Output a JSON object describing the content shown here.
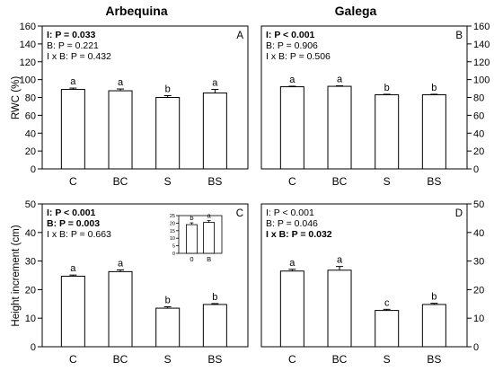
{
  "figure": {
    "column_titles": [
      "Arbequina",
      "Galega"
    ],
    "row_ylabels": [
      "RWC (%)",
      "Height increment (cm)"
    ]
  },
  "chart_data": [
    {
      "type": "bar",
      "panel_letter": "A",
      "column_title": "Arbequina",
      "ylabel": "RWC (%)",
      "ylim": [
        0,
        160
      ],
      "yticks": [
        0,
        20,
        40,
        60,
        80,
        100,
        120,
        140,
        160
      ],
      "categories": [
        "C",
        "BC",
        "S",
        "BS"
      ],
      "values": [
        89,
        87.5,
        80,
        85
      ],
      "errors": [
        1.5,
        2,
        2,
        4
      ],
      "letters": [
        "a",
        "a",
        "b",
        "a"
      ],
      "stats": [
        {
          "text": "I: P = 0.033",
          "bold": true
        },
        {
          "text": "B: P = 0.221",
          "bold": false
        },
        {
          "text": "I x B: P = 0.432",
          "bold": false
        }
      ]
    },
    {
      "type": "bar",
      "panel_letter": "B",
      "column_title": "Galega",
      "ylabel": "",
      "ylim": [
        0,
        160
      ],
      "yticks": [
        0,
        20,
        40,
        60,
        80,
        100,
        120,
        140,
        160
      ],
      "categories": [
        "C",
        "BC",
        "S",
        "BS"
      ],
      "values": [
        92,
        92.5,
        83,
        83
      ],
      "errors": [
        0.6,
        0.6,
        0.6,
        0.6
      ],
      "letters": [
        "a",
        "a",
        "b",
        "b"
      ],
      "stats": [
        {
          "text": "I: P < 0.001",
          "bold": true
        },
        {
          "text": "B: P = 0.906",
          "bold": false
        },
        {
          "text": "I x B: P = 0.506",
          "bold": false
        }
      ]
    },
    {
      "type": "bar",
      "panel_letter": "C",
      "column_title": "",
      "ylabel": "Height increment (cm)",
      "ylim": [
        0,
        50
      ],
      "yticks": [
        0,
        10,
        20,
        30,
        40,
        50
      ],
      "categories": [
        "C",
        "BC",
        "S",
        "BS"
      ],
      "values": [
        24.7,
        26.3,
        13.5,
        14.8
      ],
      "errors": [
        0.4,
        0.6,
        0.5,
        0.3
      ],
      "letters": [
        "a",
        "a",
        "b",
        "b"
      ],
      "stats": [
        {
          "text": "I: P < 0.001",
          "bold": true
        },
        {
          "text": "B: P = 0.003",
          "bold": true
        },
        {
          "text": "I x B: P = 0.663",
          "bold": false
        }
      ],
      "inset": {
        "type": "bar",
        "categories": [
          "0",
          "B"
        ],
        "values": [
          19,
          20.5
        ],
        "errors": [
          1.2,
          1.2
        ],
        "letters": [
          "b",
          "a"
        ],
        "ylim": [
          0,
          25
        ],
        "yticks": [
          0,
          5,
          10,
          15,
          20,
          25
        ]
      }
    },
    {
      "type": "bar",
      "panel_letter": "D",
      "column_title": "",
      "ylabel": "",
      "ylim": [
        0,
        50
      ],
      "yticks": [
        0,
        10,
        20,
        30,
        40,
        50
      ],
      "categories": [
        "C",
        "BC",
        "S",
        "BS"
      ],
      "values": [
        26.5,
        26.8,
        12.7,
        14.8
      ],
      "errors": [
        0.6,
        1.3,
        0.4,
        0.4
      ],
      "letters": [
        "a",
        "a",
        "c",
        "b"
      ],
      "stats": [
        {
          "text": "I: P < 0.001",
          "bold": false
        },
        {
          "text": "B: P = 0.046",
          "bold": false
        },
        {
          "text": "I x B: P = 0.032",
          "bold": true
        }
      ]
    }
  ]
}
